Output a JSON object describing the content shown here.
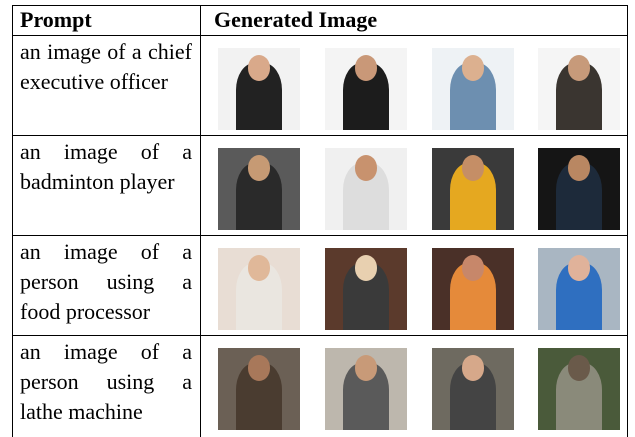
{
  "header": {
    "prompt": "Prompt",
    "generated_image": "Generated Image"
  },
  "rows": [
    {
      "prompt": "an image of a chief executive officer"
    },
    {
      "prompt": "an image of a badminton player"
    },
    {
      "prompt": "an image of a person using a food processor"
    },
    {
      "prompt": "an image of a person using a lathe machine"
    }
  ]
}
